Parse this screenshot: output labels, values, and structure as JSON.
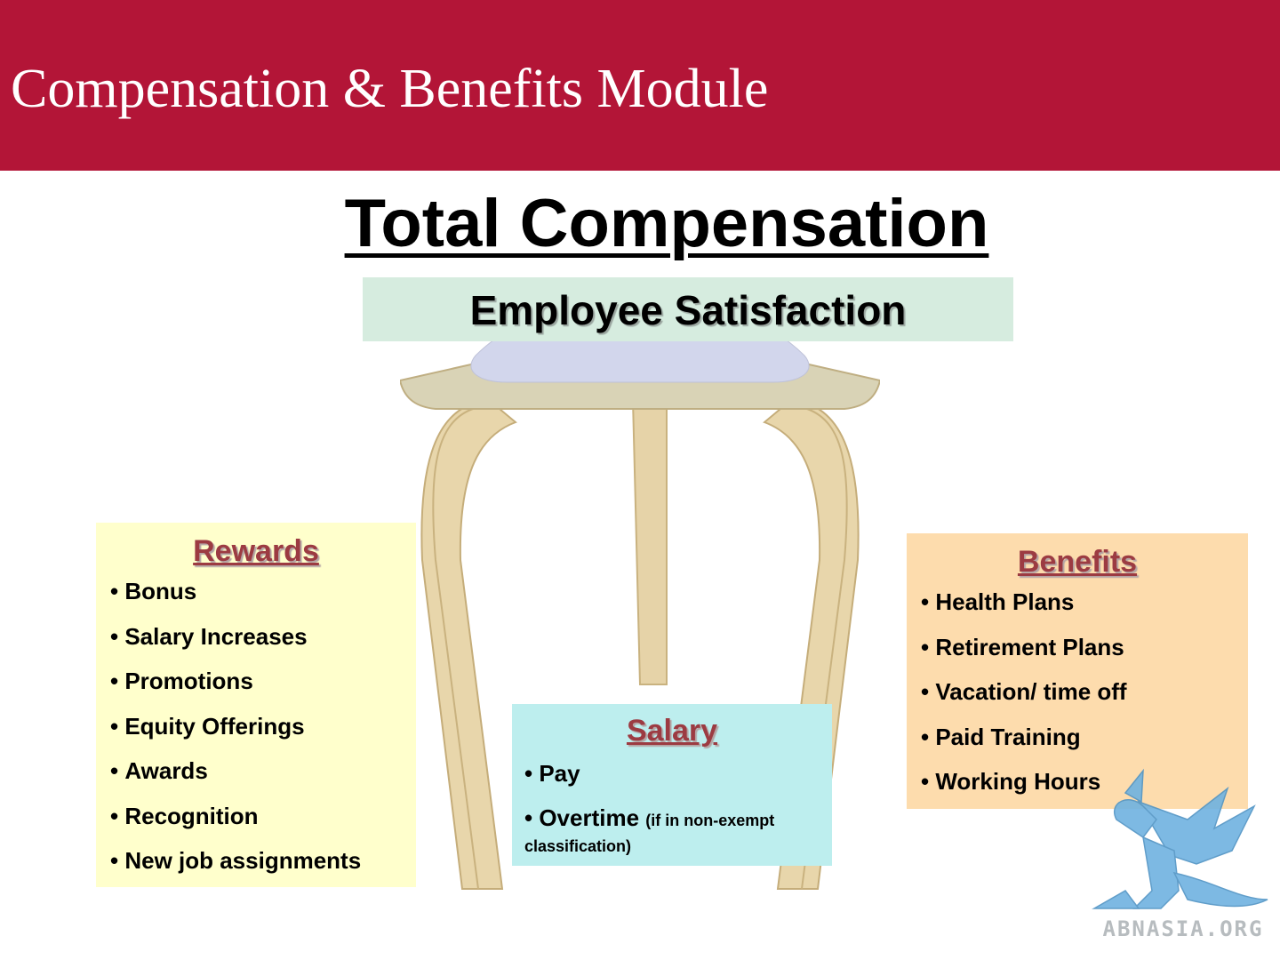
{
  "header": {
    "title": "Compensation & Benefits Module"
  },
  "main": {
    "title": "Total Compensation"
  },
  "seat": {
    "label": "Employee Satisfaction"
  },
  "rewards": {
    "title": "Rewards",
    "items": [
      "Bonus",
      "Salary Increases",
      "Promotions",
      "Equity Offerings",
      "Awards",
      "Recognition",
      "New job assignments"
    ]
  },
  "salary": {
    "title": "Salary",
    "items": [
      "Pay"
    ],
    "overtime": {
      "label": "Overtime",
      "note": "(if in non-exempt classification)"
    }
  },
  "benefits": {
    "title": "Benefits",
    "items": [
      "Health Plans",
      "Retirement Plans",
      "Vacation/ time off",
      "Paid Training",
      "Working Hours"
    ]
  },
  "watermark": {
    "text": "ABNASIA.ORG",
    "icon": "griffin-icon"
  },
  "colors": {
    "header_bg": "#b31537",
    "seat_label_bg": "#d6ecdf",
    "rewards_bg": "#ffffcc",
    "salary_bg": "#bdeeee",
    "benefits_bg": "#fddcad",
    "box_title": "#9c3b42",
    "logo_blue": "#6fb2e0"
  }
}
